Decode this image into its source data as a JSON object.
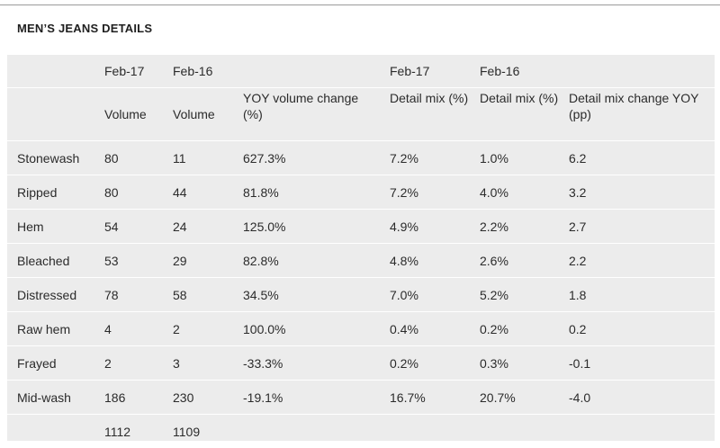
{
  "title": "MEN’S JEANS DETAILS",
  "header_row1": [
    "",
    "Feb-17",
    "Feb-16",
    "",
    "Feb-17",
    "Feb-16",
    ""
  ],
  "header_row2": [
    "",
    "Volume",
    "Volume",
    "YOY volume change (%)",
    "Detail mix (%)",
    "Detail mix (%)",
    "Detail mix change YOY (pp)"
  ],
  "rows": [
    [
      "Stonewash",
      "80",
      "11",
      "627.3%",
      "7.2%",
      "1.0%",
      "6.2"
    ],
    [
      "Ripped",
      "80",
      "44",
      "81.8%",
      "7.2%",
      "4.0%",
      "3.2"
    ],
    [
      "Hem",
      "54",
      "24",
      "125.0%",
      "4.9%",
      "2.2%",
      "2.7"
    ],
    [
      "Bleached",
      "53",
      "29",
      "82.8%",
      "4.8%",
      "2.6%",
      "2.2"
    ],
    [
      "Distressed",
      "78",
      "58",
      "34.5%",
      "7.0%",
      "5.2%",
      "1.8"
    ],
    [
      "Raw hem",
      "4",
      "2",
      "100.0%",
      "0.4%",
      "0.2%",
      "0.2"
    ],
    [
      "Frayed",
      "2",
      "3",
      "-33.3%",
      "0.2%",
      "0.3%",
      "-0.1"
    ],
    [
      "Mid-wash",
      "186",
      "230",
      "-19.1%",
      "16.7%",
      "20.7%",
      "-4.0"
    ]
  ],
  "totals": [
    "",
    "1112",
    "1109",
    "",
    "",
    "",
    ""
  ]
}
